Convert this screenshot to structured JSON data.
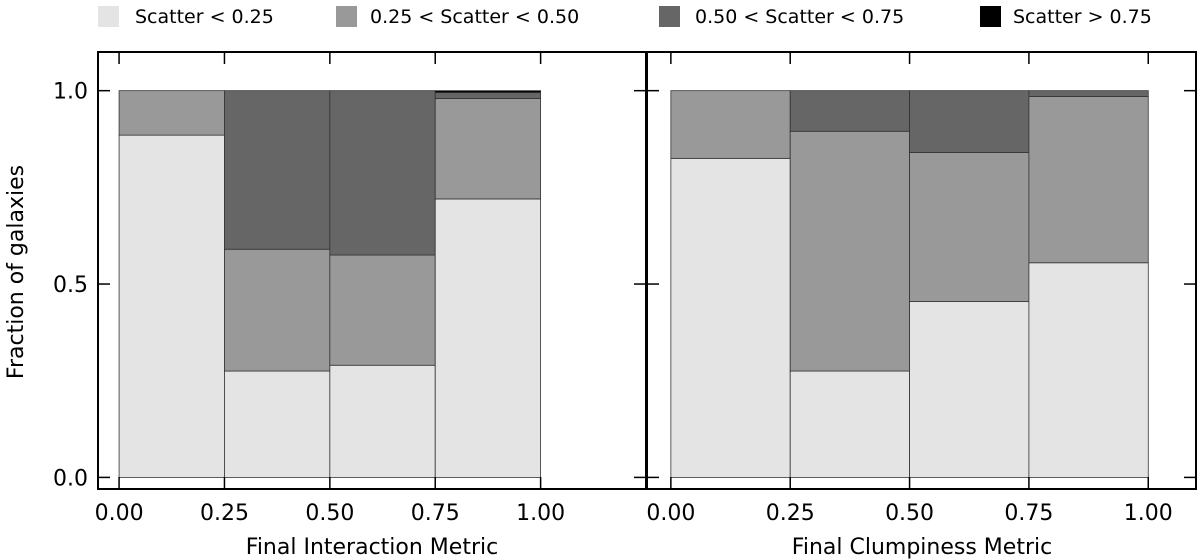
{
  "legend": {
    "entries": [
      {
        "label": "Scatter < 0.25",
        "color": "#e4e4e4"
      },
      {
        "label": "0.25 < Scatter < 0.50",
        "color": "#999999"
      },
      {
        "label": "0.50 < Scatter < 0.75",
        "color": "#666666"
      },
      {
        "label": "Scatter > 0.75",
        "color": "#000000"
      }
    ]
  },
  "ylabel": "Fraction of galaxies",
  "chart_data": [
    {
      "type": "bar",
      "stacked": true,
      "xlabel": "Final Interaction Metric",
      "ylabel": "Fraction of galaxies",
      "bin_edges": [
        0.0,
        0.25,
        0.5,
        0.75,
        1.0
      ],
      "xlim": [
        -0.05,
        1.25
      ],
      "ylim": [
        -0.03,
        1.1
      ],
      "xticks": [
        "0.00",
        "0.25",
        "0.50",
        "0.75",
        "1.00"
      ],
      "yticks": [
        "0.0",
        "0.5",
        "1.0"
      ],
      "series": [
        {
          "name": "Scatter < 0.25",
          "values": [
            0.885,
            0.275,
            0.29,
            0.72
          ]
        },
        {
          "name": "0.25 < Scatter < 0.50",
          "values": [
            0.115,
            0.315,
            0.285,
            0.26
          ]
        },
        {
          "name": "0.50 < Scatter < 0.75",
          "values": [
            0.0,
            0.41,
            0.425,
            0.015
          ]
        },
        {
          "name": "Scatter > 0.75",
          "values": [
            0.0,
            0.0,
            0.0,
            0.005
          ]
        }
      ]
    },
    {
      "type": "bar",
      "stacked": true,
      "xlabel": "Final Clumpiness Metric",
      "ylabel": "Fraction of galaxies",
      "bin_edges": [
        0.0,
        0.25,
        0.5,
        0.75,
        1.0
      ],
      "xlim": [
        -0.05,
        1.1
      ],
      "ylim": [
        -0.03,
        1.1
      ],
      "xticks": [
        "0.00",
        "0.25",
        "0.50",
        "0.75",
        "1.00"
      ],
      "yticks": [
        "0.0",
        "0.5",
        "1.0"
      ],
      "series": [
        {
          "name": "Scatter < 0.25",
          "values": [
            0.825,
            0.275,
            0.455,
            0.555
          ]
        },
        {
          "name": "0.25 < Scatter < 0.50",
          "values": [
            0.175,
            0.62,
            0.385,
            0.43
          ]
        },
        {
          "name": "0.50 < Scatter < 0.75",
          "values": [
            0.0,
            0.105,
            0.16,
            0.015
          ]
        },
        {
          "name": "Scatter > 0.75",
          "values": [
            0.0,
            0.0,
            0.0,
            0.0
          ]
        }
      ]
    }
  ]
}
